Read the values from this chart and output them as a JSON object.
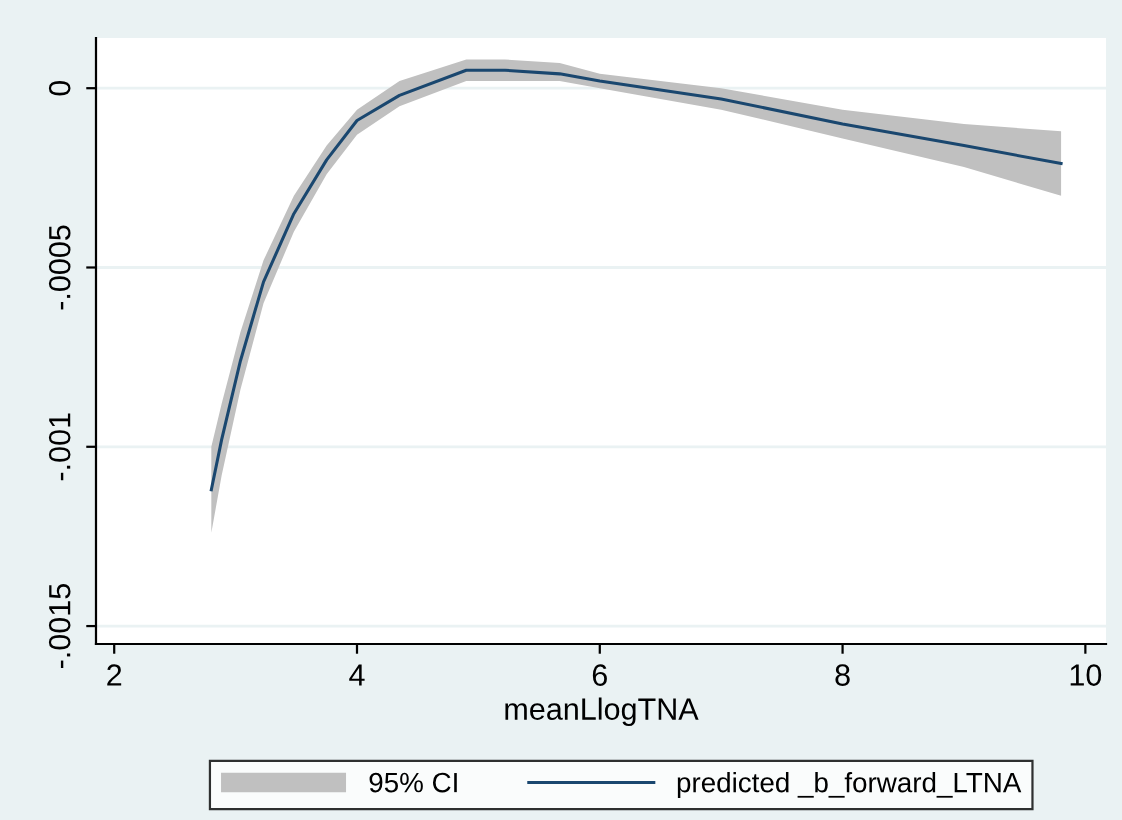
{
  "chart_data": {
    "type": "line",
    "xlabel": "meanLlogTNA",
    "x": [
      2.8,
      2.885,
      3.04,
      3.23,
      3.48,
      3.75,
      4.0,
      4.35,
      4.9,
      5.22,
      5.67,
      6,
      7,
      8,
      9,
      9.8
    ],
    "series": [
      {
        "name": "predicted _b_forward_LTNA",
        "color": "#1a476f",
        "values": [
          -0.00112,
          -0.00098,
          -0.00076,
          -0.00054,
          -0.00035,
          -0.0002,
          -9e-05,
          -2e-05,
          5e-05,
          5e-05,
          4e-05,
          2e-05,
          -3e-05,
          -0.0001,
          -0.00016,
          -0.00021
        ],
        "lower": [
          -0.00124,
          -0.00108,
          -0.00084,
          -0.0006,
          -0.0004,
          -0.00024,
          -0.00013,
          -5e-05,
          2e-05,
          2e-05,
          2e-05,
          0,
          -6e-05,
          -0.00014,
          -0.00022,
          -0.0003
        ],
        "upper": [
          -0.001,
          -0.00088,
          -0.00068,
          -0.00048,
          -0.0003,
          -0.00016,
          -6e-05,
          2e-05,
          8e-05,
          8e-05,
          7e-05,
          4e-05,
          0,
          -6e-05,
          -0.0001,
          -0.00012
        ]
      }
    ],
    "annotations": [
      "95% CI"
    ],
    "xlim": [
      1.85,
      10.17
    ],
    "xticks": [
      2,
      4,
      6,
      8,
      10
    ],
    "ylim": [
      -0.00155,
      0.00014
    ],
    "yticks": [
      {
        "value": -0.0015,
        "label": "-.0015"
      },
      {
        "value": -0.001,
        "label": "-.001"
      },
      {
        "value": -0.0005,
        "label": "-.0005"
      },
      0
    ],
    "grid": "y",
    "legend": "bottom"
  }
}
